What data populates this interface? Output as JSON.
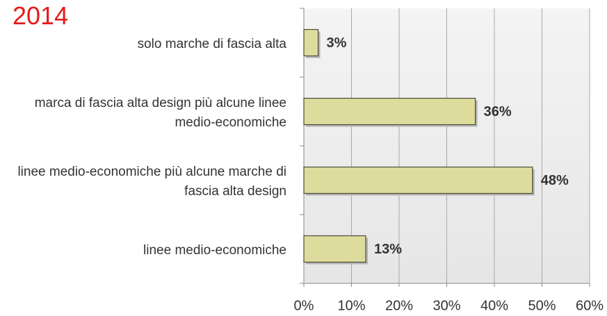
{
  "chart_data": {
    "type": "bar",
    "orientation": "horizontal",
    "title": "2014",
    "categories": [
      "solo marche di fascia alta",
      "marca di fascia alta design più alcune linee medio-economiche",
      "linee medio-economiche più alcune marche di fascia alta design",
      "linee medio-economiche"
    ],
    "values": [
      3,
      36,
      48,
      13
    ],
    "value_labels": [
      "3%",
      "36%",
      "48%",
      "13%"
    ],
    "color": "#dedc9c",
    "xlim": [
      0,
      60
    ],
    "xticks": [
      {
        "value": 0,
        "label": "0%"
      },
      {
        "value": 10,
        "label": "10%"
      },
      {
        "value": 20,
        "label": "20%"
      },
      {
        "value": 30,
        "label": "30%"
      },
      {
        "value": 40,
        "label": "40%"
      },
      {
        "value": 50,
        "label": "50%"
      },
      {
        "value": 60,
        "label": "60%"
      }
    ],
    "grid": true
  }
}
